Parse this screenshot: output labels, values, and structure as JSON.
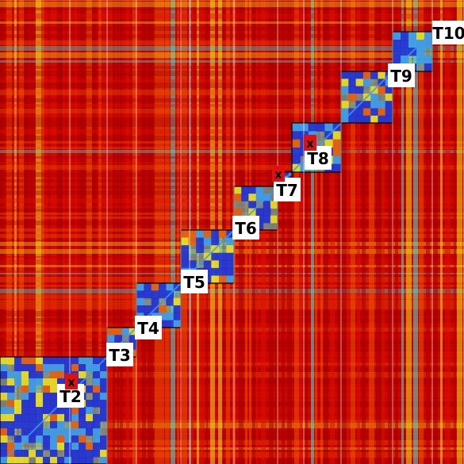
{
  "colors": {
    "background": "#c80000",
    "dark_red": "#9b0000",
    "red": "#d81400",
    "orange": "#f05a00",
    "yellow": "#f2e21a",
    "cyan": "#48e6d8",
    "light_blue": "#3a9cf0",
    "blue": "#1a2ad8",
    "marker": "#e01010",
    "label_bg": "#ffffff",
    "label_text": "#000000",
    "box_stroke": "#000000"
  },
  "blocks": [
    {
      "id": "T2",
      "label": "T2",
      "marked": true
    },
    {
      "id": "T3",
      "label": "T3",
      "marked": false
    },
    {
      "id": "T4",
      "label": "T4",
      "marked": false
    },
    {
      "id": "T5",
      "label": "T5",
      "marked": false
    },
    {
      "id": "T6",
      "label": "T6",
      "marked": false
    },
    {
      "id": "T7",
      "label": "T7",
      "marked": true
    },
    {
      "id": "T8",
      "label": "T8",
      "marked": true
    },
    {
      "id": "T9",
      "label": "T9",
      "marked": false
    },
    {
      "id": "T10",
      "label": "T10",
      "marked": false
    }
  ],
  "marker_symbol": "x"
}
